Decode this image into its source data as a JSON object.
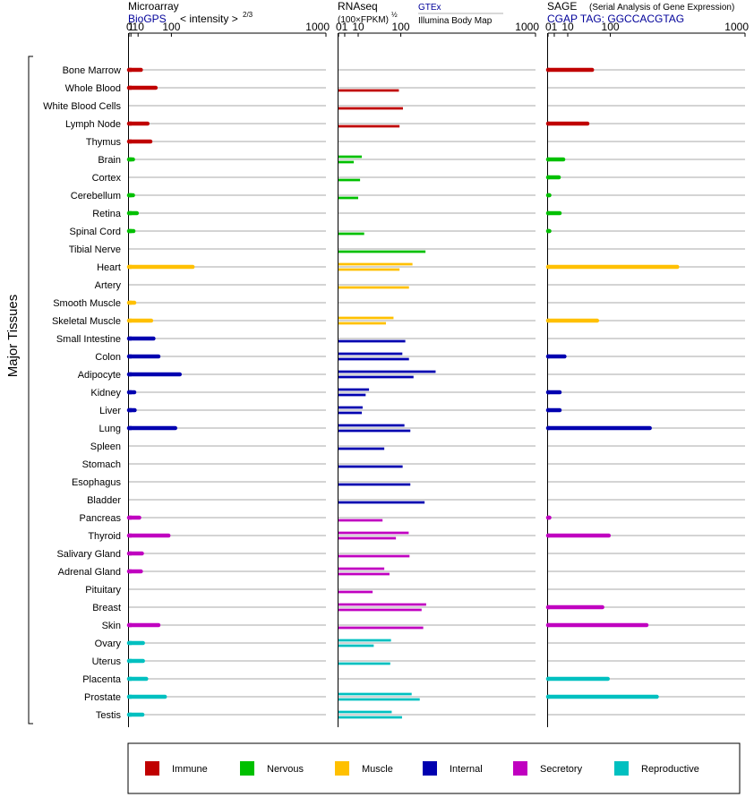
{
  "chart_data": {
    "type": "bar",
    "orientation": "horizontal",
    "y_axis_label": "Major Tissues",
    "tick_labels": [
      "0",
      "1",
      "10",
      "100",
      "1000"
    ],
    "panels": [
      {
        "id": "microarray",
        "title": "Microarray",
        "link": "BioGPS",
        "scale_label": "< intensity >",
        "scale_exponent": "2/3",
        "scale": "power-2/3",
        "xlim": [
          0,
          1000
        ]
      },
      {
        "id": "rnaseq",
        "title": "RNAseq",
        "scale_label": "(100×FPKM)",
        "scale_exponent": "½",
        "sources": [
          "GTEx",
          "Illumina Body Map"
        ],
        "scale": "power-1/2",
        "xlim": [
          0,
          1000
        ]
      },
      {
        "id": "sage",
        "title": "SAGE",
        "subtitle": "(Serial Analysis of Gene Expression)",
        "link": "CGAP TAG: GGCCACGTAG",
        "scale": "power-1/2",
        "xlim": [
          0,
          1000
        ]
      }
    ],
    "legend": {
      "placement": "bottom",
      "items": [
        {
          "key": "immune",
          "label": "Immune",
          "color": "#C00000"
        },
        {
          "key": "nervous",
          "label": "Nervous",
          "color": "#00C000"
        },
        {
          "key": "muscle",
          "label": "Muscle",
          "color": "#FFC000"
        },
        {
          "key": "internal",
          "label": "Internal",
          "color": "#0000B0"
        },
        {
          "key": "secretory",
          "label": "Secretory",
          "color": "#C000C0"
        },
        {
          "key": "reproductive",
          "label": "Reproductive",
          "color": "#00C0C0"
        }
      ]
    },
    "tissues": [
      {
        "name": "Bone Marrow",
        "group": "immune",
        "microarray": 15,
        "rnaseq": [],
        "sage": 50
      },
      {
        "name": "Whole Blood",
        "group": "immune",
        "microarray": 50,
        "rnaseq": [
          null,
          94
        ],
        "sage": null
      },
      {
        "name": "White Blood Cells",
        "group": "immune",
        "microarray": null,
        "rnaseq": [
          null,
          107
        ],
        "sage": null
      },
      {
        "name": "Lymph Node",
        "group": "immune",
        "microarray": 29,
        "rnaseq": [
          null,
          96
        ],
        "sage": 40
      },
      {
        "name": "Thymus",
        "group": "immune",
        "microarray": 36,
        "rnaseq": [],
        "sage": null
      },
      {
        "name": "Brain",
        "group": "nervous",
        "microarray": 3,
        "rnaseq": [
          14,
          6
        ],
        "sage": 6
      },
      {
        "name": "Cortex",
        "group": "nervous",
        "microarray": null,
        "rnaseq": [
          null,
          12
        ],
        "sage": 3
      },
      {
        "name": "Cerebellum",
        "group": "nervous",
        "microarray": 3,
        "rnaseq": [
          null,
          10
        ],
        "sage": 0.05
      },
      {
        "name": "Retina",
        "group": "nervous",
        "microarray": 8,
        "rnaseq": [],
        "sage": 3.5
      },
      {
        "name": "Spinal Cord",
        "group": "nervous",
        "microarray": 3.5,
        "rnaseq": [
          null,
          17
        ],
        "sage": 0.05
      },
      {
        "name": "Tibial Nerve",
        "group": "nervous",
        "microarray": null,
        "rnaseq": [
          null,
          195
        ],
        "sage": null
      },
      {
        "name": "Heart",
        "group": "muscle",
        "microarray": 184,
        "rnaseq": [
          141,
          96
        ],
        "sage": 430
      },
      {
        "name": "Artery",
        "group": "muscle",
        "microarray": null,
        "rnaseq": [
          null,
          128
        ],
        "sage": null
      },
      {
        "name": "Smooth Muscle",
        "group": "muscle",
        "microarray": 4.5,
        "rnaseq": [],
        "sage": null
      },
      {
        "name": "Skeletal Muscle",
        "group": "muscle",
        "microarray": 38,
        "rnaseq": [
          78,
          58
        ],
        "sage": 62
      },
      {
        "name": "Small Intestine",
        "group": "internal",
        "microarray": 44,
        "rnaseq": [
          null,
          115
        ],
        "sage": null
      },
      {
        "name": "Colon",
        "group": "internal",
        "microarray": 58,
        "rnaseq": [
          105,
          128
        ],
        "sage": 7
      },
      {
        "name": "Adipocyte",
        "group": "internal",
        "microarray": 131,
        "rnaseq": [
          243,
          145
        ],
        "sage": null
      },
      {
        "name": "Kidney",
        "group": "internal",
        "microarray": 4.5,
        "rnaseq": [
          24,
          19
        ],
        "sage": 3.5
      },
      {
        "name": "Liver",
        "group": "internal",
        "microarray": 5,
        "rnaseq": [
          15,
          14
        ],
        "sage": 3.5
      },
      {
        "name": "Lung",
        "group": "internal",
        "microarray": 114,
        "rnaseq": [
          112,
          133
        ],
        "sage": 267
      },
      {
        "name": "Spleen",
        "group": "internal",
        "microarray": null,
        "rnaseq": [
          null,
          54
        ],
        "sage": null
      },
      {
        "name": "Stomach",
        "group": "internal",
        "microarray": null,
        "rnaseq": [
          null,
          106
        ],
        "sage": null
      },
      {
        "name": "Esophagus",
        "group": "internal",
        "microarray": null,
        "rnaseq": [
          null,
          133
        ],
        "sage": null
      },
      {
        "name": "Bladder",
        "group": "internal",
        "microarray": null,
        "rnaseq": [
          null,
          191
        ],
        "sage": null
      },
      {
        "name": "Pancreas",
        "group": "secretory",
        "microarray": 12,
        "rnaseq": [
          null,
          50
        ],
        "sage": 0.05
      },
      {
        "name": "Thyroid",
        "group": "secretory",
        "microarray": 90,
        "rnaseq": [
          127,
          85
        ],
        "sage": 95
      },
      {
        "name": "Salivary Gland",
        "group": "secretory",
        "microarray": 17,
        "rnaseq": [
          null,
          130
        ],
        "sage": null
      },
      {
        "name": "Adrenal Gland",
        "group": "secretory",
        "microarray": 15,
        "rnaseq": [
          54,
          67
        ],
        "sage": null
      },
      {
        "name": "Pituitary",
        "group": "secretory",
        "microarray": null,
        "rnaseq": [
          null,
          30
        ],
        "sage": null
      },
      {
        "name": "Breast",
        "group": "secretory",
        "microarray": null,
        "rnaseq": [
          198,
          178
        ],
        "sage": 76
      },
      {
        "name": "Skin",
        "group": "secretory",
        "microarray": 58,
        "rnaseq": [
          null,
          185
        ],
        "sage": 250
      },
      {
        "name": "Ovary",
        "group": "reproductive",
        "microarray": 19,
        "rnaseq": [
          71,
          32
        ],
        "sage": null
      },
      {
        "name": "Uterus",
        "group": "reproductive",
        "microarray": 19,
        "rnaseq": [
          null,
          69
        ],
        "sage": null
      },
      {
        "name": "Placenta",
        "group": "reproductive",
        "microarray": 26,
        "rnaseq": [],
        "sage": 92
      },
      {
        "name": "Prostate",
        "group": "reproductive",
        "microarray": 78,
        "rnaseq": [
          138,
          170
        ],
        "sage": 305
      },
      {
        "name": "Testis",
        "group": "reproductive",
        "microarray": 18,
        "rnaseq": [
          73,
          104
        ],
        "sage": null
      }
    ]
  }
}
